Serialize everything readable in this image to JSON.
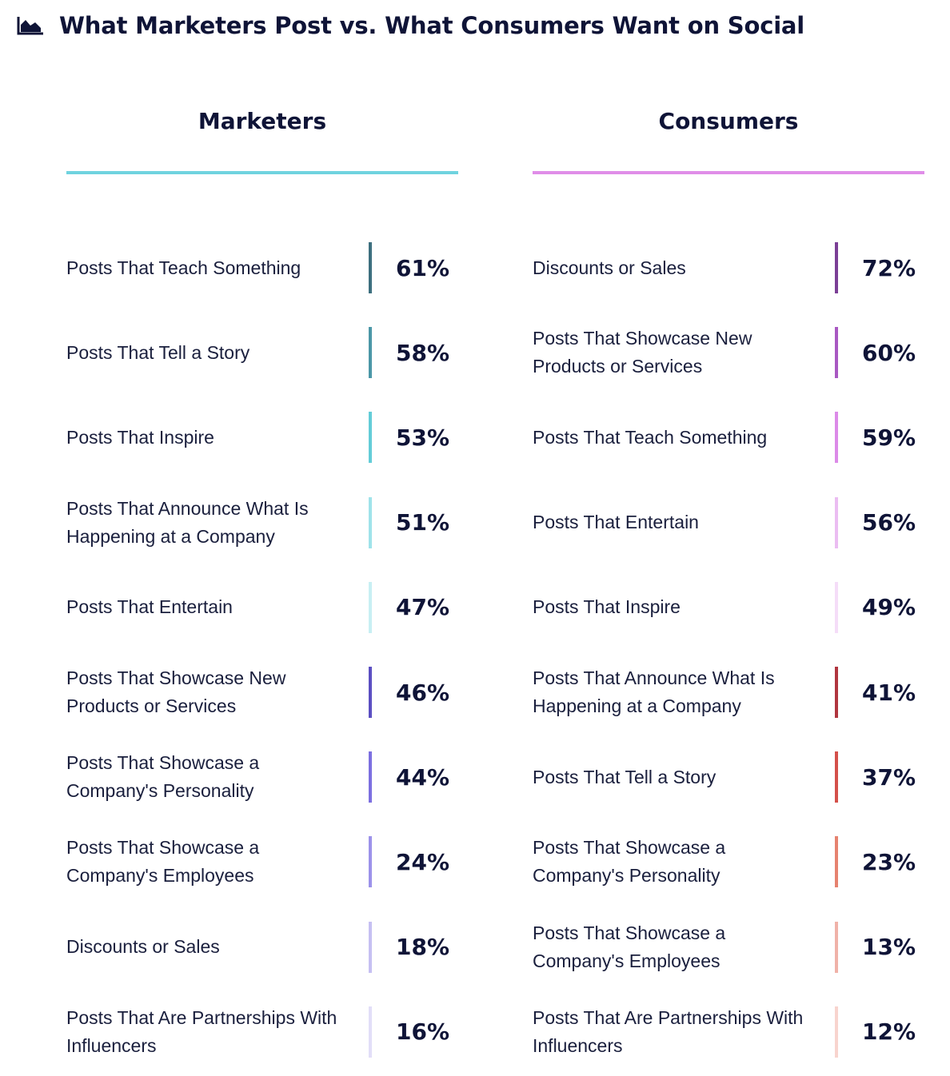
{
  "title": "What Marketers Post vs. What Consumers Want on Social",
  "icon": "area-chart-icon",
  "chart_data": [
    {
      "type": "table",
      "title": "Marketers",
      "accent": "#6fd3df",
      "rows": [
        {
          "label": "Posts That Teach Something",
          "value": "61%",
          "color": "#3d6f7f"
        },
        {
          "label": "Posts That Tell a Story",
          "value": "58%",
          "color": "#4b97a7"
        },
        {
          "label": "Posts That Inspire",
          "value": "53%",
          "color": "#63cdd8"
        },
        {
          "label": "Posts That Announce What Is Happening at a Company",
          "value": "51%",
          "color": "#9fe3ea"
        },
        {
          "label": "Posts That Entertain",
          "value": "47%",
          "color": "#c8eff3"
        },
        {
          "label": "Posts That Showcase New Products or Services",
          "value": "46%",
          "color": "#5b4fc2"
        },
        {
          "label": "Posts That Showcase a Company's Personality",
          "value": "44%",
          "color": "#7c6fe0"
        },
        {
          "label": "Posts That Showcase a Company's Employees",
          "value": "24%",
          "color": "#9c92ea"
        },
        {
          "label": "Discounts or Sales",
          "value": "18%",
          "color": "#c6c0f2"
        },
        {
          "label": "Posts That Are Partnerships With Influencers",
          "value": "16%",
          "color": "#e2def8"
        }
      ]
    },
    {
      "type": "table",
      "title": "Consumers",
      "accent": "#e08de8",
      "rows": [
        {
          "label": "Discounts or Sales",
          "value": "72%",
          "color": "#7b3f95"
        },
        {
          "label": "Posts That Showcase New Products or Services",
          "value": "60%",
          "color": "#a858c2"
        },
        {
          "label": "Posts That Teach Something",
          "value": "59%",
          "color": "#dc8ae8"
        },
        {
          "label": "Posts That Entertain",
          "value": "56%",
          "color": "#ebbdf2"
        },
        {
          "label": "Posts That Inspire",
          "value": "49%",
          "color": "#f5ddf8"
        },
        {
          "label": "Posts That Announce What Is Happening at a Company",
          "value": "41%",
          "color": "#b0353f"
        },
        {
          "label": "Posts That Tell a Story",
          "value": "37%",
          "color": "#d4504a"
        },
        {
          "label": "Posts That Showcase a Company's Personality",
          "value": "23%",
          "color": "#e6826f"
        },
        {
          "label": "Posts That Showcase a Company's Employees",
          "value": "13%",
          "color": "#f0b2a8"
        },
        {
          "label": "Posts That Are Partnerships With Influencers",
          "value": "12%",
          "color": "#f8d4ce"
        }
      ]
    }
  ]
}
